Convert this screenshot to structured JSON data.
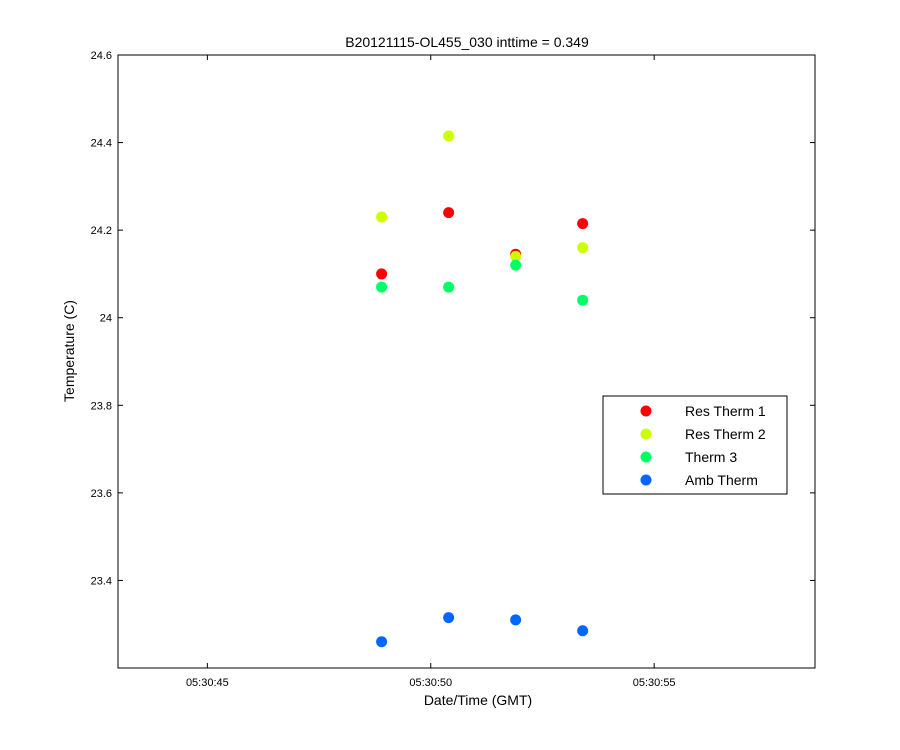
{
  "chart_data": {
    "type": "scatter",
    "title": "B20121115-OL455_030 inttime = 0.349",
    "xlabel": "Date/Time (GMT)",
    "ylabel": "Temperature (C)",
    "x_tick_labels": [
      "05:30:45",
      "05:30:50",
      "05:30:55"
    ],
    "x_tick_values": [
      "05:30:45",
      "05:30:50",
      "05:30:55"
    ],
    "xlim": [
      "05:30:43.0",
      "05:30:58.6"
    ],
    "ylim": [
      23.2,
      24.6
    ],
    "y_ticks": [
      23.4,
      23.6,
      23.8,
      24,
      24.2,
      24.4,
      24.6
    ],
    "grid": false,
    "legend_position": "right",
    "x": [
      "05:30:48.9",
      "05:30:50.4",
      "05:30:51.9",
      "05:30:53.4"
    ],
    "series": [
      {
        "name": "Res Therm 1",
        "color": "#ff0000",
        "values": [
          24.1,
          24.24,
          24.145,
          24.215
        ]
      },
      {
        "name": "Res Therm 2",
        "color": "#ccff00",
        "values": [
          24.23,
          24.415,
          24.14,
          24.16
        ]
      },
      {
        "name": "Therm 3",
        "color": "#00ff66",
        "values": [
          24.07,
          24.07,
          24.12,
          24.04
        ]
      },
      {
        "name": "Amb Therm",
        "color": "#0066ff",
        "values": [
          23.26,
          23.315,
          23.31,
          23.285
        ]
      }
    ]
  }
}
